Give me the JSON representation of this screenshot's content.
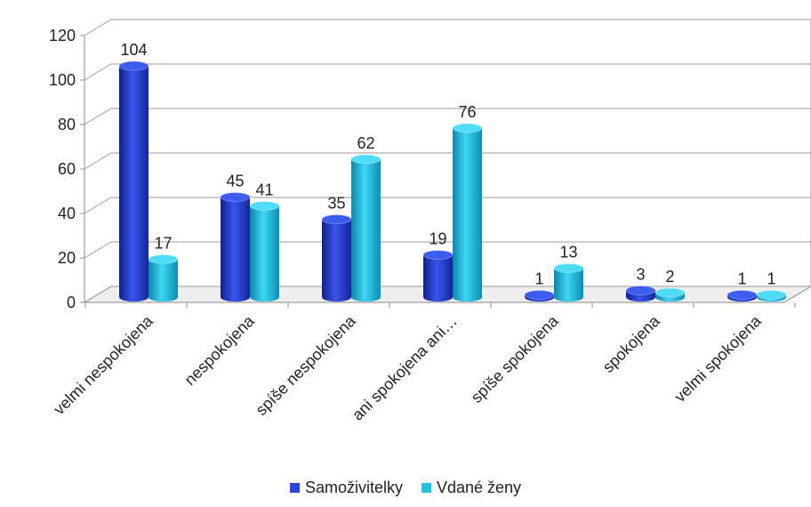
{
  "chart_data": {
    "type": "bar",
    "categories": [
      "velmi nespokojena",
      "nespokojena",
      "spíše nespokojena",
      "ani spokojena ani…",
      "spíše spokojena",
      "spokojena",
      "velmi spokojena"
    ],
    "series": [
      {
        "name": "Samoživitelky",
        "values": [
          104,
          45,
          35,
          19,
          1,
          3,
          1
        ],
        "color": "#2c45d8"
      },
      {
        "name": "Vdané ženy",
        "values": [
          17,
          41,
          62,
          76,
          13,
          2,
          1
        ],
        "color": "#27bfe0"
      }
    ],
    "ylim": [
      0,
      120
    ],
    "yticks": [
      0,
      20,
      40,
      60,
      80,
      100,
      120
    ],
    "grid": true,
    "legend_position": "bottom"
  },
  "legend": {
    "s1": "Samoživitelky",
    "s2": "Vdané ženy"
  }
}
